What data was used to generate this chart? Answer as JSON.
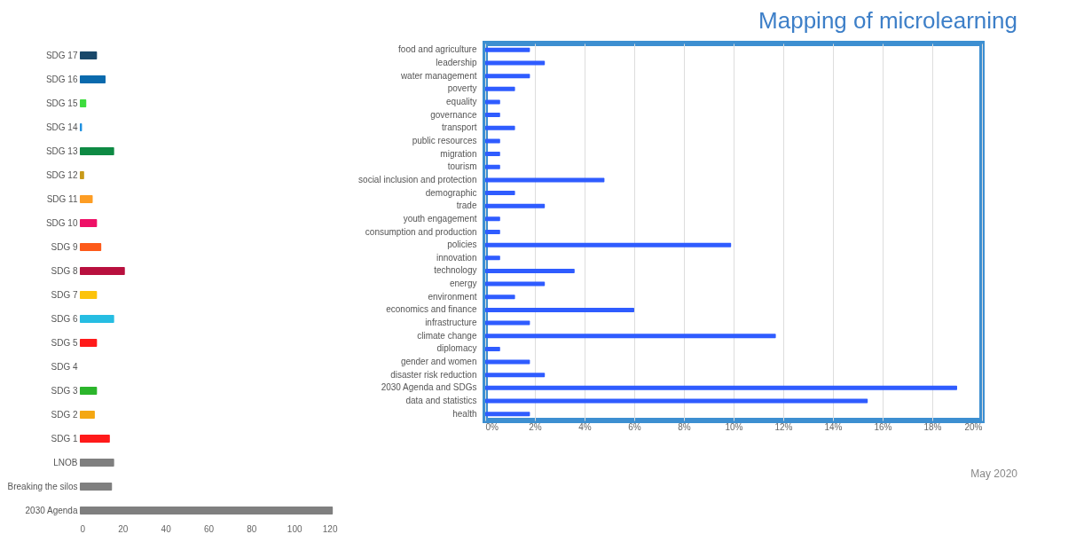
{
  "chart_data": [
    {
      "type": "bar",
      "orientation": "horizontal",
      "categories": [
        "SDG 17",
        "SDG 16",
        "SDG 15",
        "SDG 14",
        "SDG 13",
        "SDG 12",
        "SDG 11",
        "SDG 10",
        "SDG 9",
        "SDG 8",
        "SDG 7",
        "SDG 6",
        "SDG 5",
        "SDG 4",
        "SDG 3",
        "SDG 2",
        "SDG 1",
        "LNOB",
        "Breaking the silos",
        "2030 Agenda"
      ],
      "values": [
        8,
        12,
        3,
        1,
        16,
        2,
        6,
        8,
        10,
        21,
        8,
        16,
        8,
        0,
        8,
        7,
        14,
        16,
        15,
        118
      ],
      "colors": [
        "#19486a",
        "#0a6aad",
        "#3ddc3d",
        "#1e90e0",
        "#0e8a44",
        "#c89a1a",
        "#fd9d24",
        "#ee1066",
        "#fd5a1a",
        "#b8103e",
        "#fcc30b",
        "#26bde2",
        "#ff1a1a",
        "#c5192d",
        "#2bb52b",
        "#f4a712",
        "#ff1a1a",
        "#7f7f7f",
        "#7f7f7f",
        "#7f7f7f"
      ],
      "xlim": [
        0,
        120
      ],
      "xticks": [
        0,
        20,
        40,
        60,
        80,
        100,
        120
      ],
      "grid": false
    },
    {
      "type": "bar",
      "orientation": "horizontal",
      "title": "Mapping of microlearning",
      "categories": [
        "food and agriculture",
        "leadership",
        "water management",
        "poverty",
        "equality",
        "governance",
        "transport",
        "public resources",
        "migration",
        "tourism",
        "social inclusion and protection",
        "demographic",
        "trade",
        "youth engagement",
        "consumption and production",
        "policies",
        "innovation",
        "technology",
        "energy",
        "environment",
        "economics and finance",
        "infrastructure",
        "climate change",
        "diplomacy",
        "gender and women",
        "disaster risk reduction",
        "2030 Agenda and SDGs",
        "data and statistics",
        "health"
      ],
      "values": [
        1.8,
        2.4,
        1.8,
        1.2,
        0.6,
        0.6,
        1.2,
        0.6,
        0.6,
        0.6,
        4.8,
        1.2,
        2.4,
        0.6,
        0.6,
        9.9,
        0.6,
        3.6,
        2.4,
        1.2,
        6.0,
        1.8,
        11.7,
        0.6,
        1.8,
        2.4,
        19.0,
        15.4,
        1.8
      ],
      "color": "#2f5cff",
      "xlim": [
        0,
        20
      ],
      "xticks": [
        {
          "value": 0,
          "label": "0%"
        },
        {
          "value": 2,
          "label": "2%"
        },
        {
          "value": 4,
          "label": "4%"
        },
        {
          "value": 6,
          "label": "6%"
        },
        {
          "value": 8,
          "label": "8%"
        },
        {
          "value": 10,
          "label": "10%"
        },
        {
          "value": 12,
          "label": "12%"
        },
        {
          "value": 14,
          "label": "14%"
        },
        {
          "value": 16,
          "label": "16%"
        },
        {
          "value": 18,
          "label": "18%"
        },
        {
          "value": 20,
          "label": "20%"
        }
      ],
      "grid": "x",
      "annotations": [
        "May 2020"
      ]
    }
  ]
}
